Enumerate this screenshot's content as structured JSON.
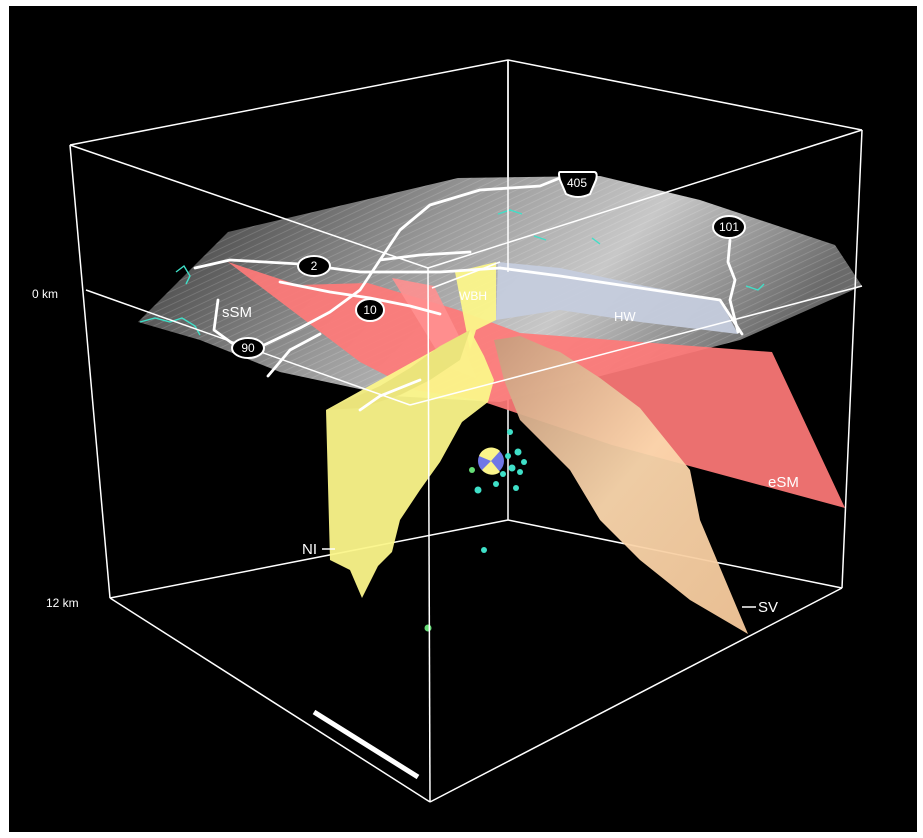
{
  "depth_axis": {
    "top_label": "0 km",
    "bottom_label": "12 km"
  },
  "regions": {
    "ssm": "sSM",
    "esm": "eSM",
    "wbh": "WBH",
    "hw": "HW",
    "ni": "NI",
    "sv": "SV"
  },
  "highways": {
    "i405": "405",
    "us101": "101",
    "sr2": "2",
    "i10": "10",
    "sr90": "90"
  },
  "colors": {
    "background": "#000000",
    "box_lines": "#ffffff",
    "fault_red": "#ff7a78",
    "fault_yellow": "#fbf58a",
    "fault_peach": "#f9cfa2",
    "fault_blue": "#c5ccdd",
    "terrain": "#8a8a8a",
    "aftershocks": "#3fe0c8",
    "mainshock_focal": "#6f77e6"
  }
}
